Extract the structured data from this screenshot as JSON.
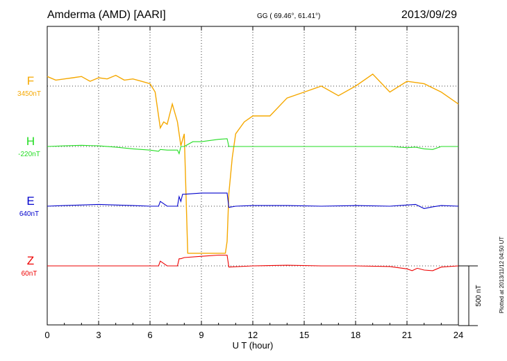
{
  "header": {
    "station": "Amderma (AMD)  [AARI]",
    "coords": "GG ( 69.46°,  61.41°)",
    "date": "2013/09/29"
  },
  "footer": {
    "plotted": "Plotted at 2013/11/12 04:50 UT"
  },
  "chart_data": {
    "type": "line",
    "xlabel": "U T (hour)",
    "xlim": [
      0,
      24
    ],
    "xticks": [
      "0",
      "3",
      "6",
      "9",
      "12",
      "15",
      "18",
      "21",
      "24"
    ],
    "scale_bar": "500 nT",
    "grid": true,
    "series": [
      {
        "name": "F",
        "baseline_label": "3450nT",
        "color": "#f5a800",
        "x": [
          0,
          0.5,
          1,
          1.5,
          2,
          2.5,
          3,
          3.5,
          4,
          4.5,
          5,
          5.5,
          6,
          6.3,
          6.5,
          6.6,
          6.8,
          7,
          7.3,
          7.6,
          7.8,
          8,
          8.2,
          8.5,
          9,
          9.5,
          10,
          10.4,
          10.5,
          10.6,
          10.8,
          11,
          11.5,
          12,
          13,
          14,
          15,
          16,
          17,
          18,
          19,
          20,
          21,
          22,
          23,
          24
        ],
        "values": [
          80,
          50,
          60,
          70,
          80,
          40,
          70,
          60,
          90,
          50,
          60,
          40,
          20,
          -50,
          -250,
          -350,
          -300,
          -320,
          -150,
          -300,
          -500,
          -400,
          -1400,
          -1400,
          -1400,
          -1400,
          -1400,
          -1400,
          -1300,
          -900,
          -600,
          -400,
          -300,
          -250,
          -250,
          -100,
          -50,
          0,
          -80,
          0,
          100,
          -50,
          40,
          20,
          -50,
          -150
        ]
      },
      {
        "name": "H",
        "baseline_label": "-220nT",
        "color": "#22dd22",
        "x": [
          0,
          1,
          2,
          3,
          4,
          5,
          6,
          6.5,
          6.6,
          7,
          7.6,
          7.7,
          7.8,
          8,
          8.5,
          9,
          10,
          10.5,
          10.6,
          11,
          12,
          14,
          16,
          18,
          20,
          21,
          21.5,
          22,
          22.5,
          23,
          24
        ],
        "values": [
          0,
          5,
          10,
          5,
          -5,
          -20,
          -30,
          -40,
          -25,
          -30,
          -30,
          -60,
          0,
          0,
          40,
          40,
          60,
          65,
          0,
          0,
          0,
          0,
          0,
          0,
          0,
          -10,
          -5,
          -20,
          -25,
          0,
          0
        ]
      },
      {
        "name": "E",
        "baseline_label": "640nT",
        "color": "#0000cc",
        "x": [
          0,
          1,
          2,
          3,
          4,
          5,
          6,
          6.5,
          6.6,
          7,
          7.6,
          7.7,
          7.8,
          7.9,
          8,
          9,
          10,
          10.5,
          10.6,
          11,
          12,
          14,
          16,
          18,
          20,
          21,
          21.5,
          22,
          22.5,
          23,
          24
        ],
        "values": [
          0,
          5,
          10,
          15,
          10,
          5,
          0,
          0,
          40,
          0,
          0,
          80,
          40,
          100,
          100,
          110,
          110,
          110,
          -10,
          0,
          5,
          5,
          0,
          5,
          0,
          10,
          15,
          -20,
          -5,
          5,
          0
        ]
      },
      {
        "name": "Z",
        "baseline_label": "60nT",
        "color": "#ee0000",
        "x": [
          0,
          2,
          4,
          6,
          6.5,
          6.6,
          7,
          7.6,
          7.7,
          7.8,
          8,
          9,
          10,
          10.5,
          10.6,
          12,
          14,
          16,
          18,
          20,
          21,
          21.3,
          21.6,
          22,
          22.5,
          23,
          24
        ],
        "values": [
          0,
          0,
          0,
          0,
          0,
          40,
          0,
          0,
          60,
          60,
          70,
          80,
          90,
          90,
          -10,
          0,
          5,
          0,
          0,
          -5,
          -25,
          -40,
          -20,
          -35,
          -40,
          -10,
          0
        ]
      }
    ]
  }
}
